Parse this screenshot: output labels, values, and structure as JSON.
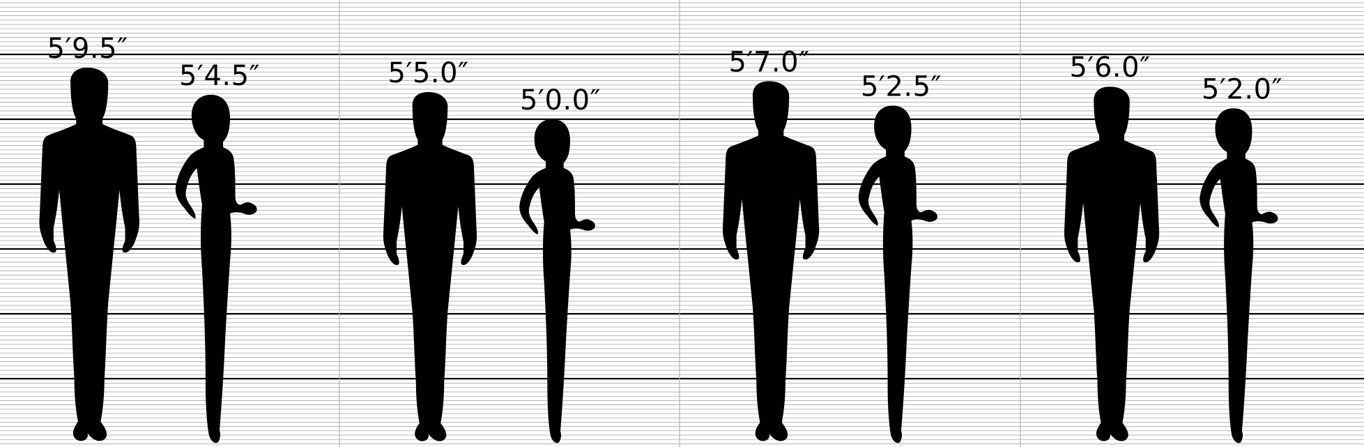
{
  "panels": [
    {
      "male": {
        "height_label": "5′9.5″",
        "height_in": 69.5
      },
      "female": {
        "height_label": "5′4.5″",
        "height_in": 64.5
      }
    },
    {
      "male": {
        "height_label": "5′5.0″",
        "height_in": 65.0
      },
      "female": {
        "height_label": "5′0.0″",
        "height_in": 60.0
      }
    },
    {
      "male": {
        "height_label": "5′7.0″",
        "height_in": 67.0
      },
      "female": {
        "height_label": "5′2.5″",
        "height_in": 62.5
      }
    },
    {
      "male": {
        "height_label": "5′6.0″",
        "height_in": 66.0
      },
      "female": {
        "height_label": "5′2.0″",
        "height_in": 62.0
      }
    }
  ],
  "colors": {
    "silhouette": "#000000",
    "grid_line": "#9a9a9a",
    "major_line": "#000000",
    "background": "#ffffff"
  }
}
